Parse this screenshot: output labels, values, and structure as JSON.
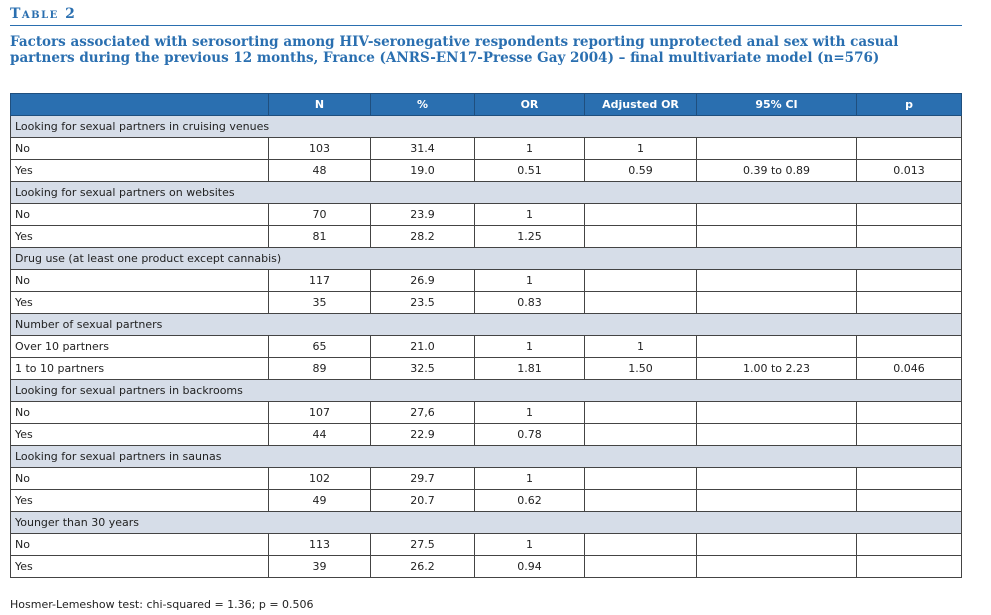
{
  "table_label": "Table 2",
  "title": "Factors associated with serosorting among HIV-seronegative respondents reporting unprotected anal sex with casual partners during the previous 12 months, France (ANRS-EN17-Presse Gay 2004) – final multivariate model (n=576)",
  "headers": [
    "",
    "N",
    "%",
    "OR",
    "Adjusted OR",
    "95% CI",
    "p"
  ],
  "sections": [
    {
      "title": "Looking for sexual partners in cruising venues",
      "rows": [
        [
          "No",
          "103",
          "31.4",
          "1",
          "1",
          "",
          ""
        ],
        [
          "Yes",
          "48",
          "19.0",
          "0.51",
          "0.59",
          "0.39 to 0.89",
          "0.013"
        ]
      ]
    },
    {
      "title": "Looking for sexual partners on websites",
      "rows": [
        [
          "No",
          "70",
          "23.9",
          "1",
          "",
          "",
          ""
        ],
        [
          "Yes",
          "81",
          "28.2",
          "1.25",
          "",
          "",
          ""
        ]
      ]
    },
    {
      "title": "Drug use (at least one product except cannabis)",
      "rows": [
        [
          "No",
          "117",
          "26.9",
          "1",
          "",
          "",
          ""
        ],
        [
          "Yes",
          "35",
          "23.5",
          "0.83",
          "",
          "",
          ""
        ]
      ]
    },
    {
      "title": "Number of sexual partners",
      "rows": [
        [
          "Over 10 partners",
          "65",
          "21.0",
          "1",
          "1",
          "",
          ""
        ],
        [
          "1 to 10 partners",
          "89",
          "32.5",
          "1.81",
          "1.50",
          "1.00 to 2.23",
          "0.046"
        ]
      ]
    },
    {
      "title": "Looking for sexual partners in backrooms",
      "rows": [
        [
          "No",
          "107",
          "27,6",
          "1",
          "",
          "",
          ""
        ],
        [
          "Yes",
          "44",
          "22.9",
          "0.78",
          "",
          "",
          ""
        ]
      ]
    },
    {
      "title": "Looking for sexual partners in saunas",
      "rows": [
        [
          "No",
          "102",
          "29.7",
          "1",
          "",
          "",
          ""
        ],
        [
          "Yes",
          "49",
          "20.7",
          "0.62",
          "",
          "",
          ""
        ]
      ]
    },
    {
      "title": "Younger than 30 years",
      "rows": [
        [
          "No",
          "113",
          "27.5",
          "1",
          "",
          "",
          ""
        ],
        [
          "Yes",
          "39",
          "26.2",
          "0.94",
          "",
          "",
          ""
        ]
      ]
    }
  ],
  "footnote": "Hosmer-Lemeshow test: chi-squared = 1.36; p = 0.506",
  "colors": {
    "accent": "#2a6fb0",
    "section_bg": "#d6dde8"
  }
}
